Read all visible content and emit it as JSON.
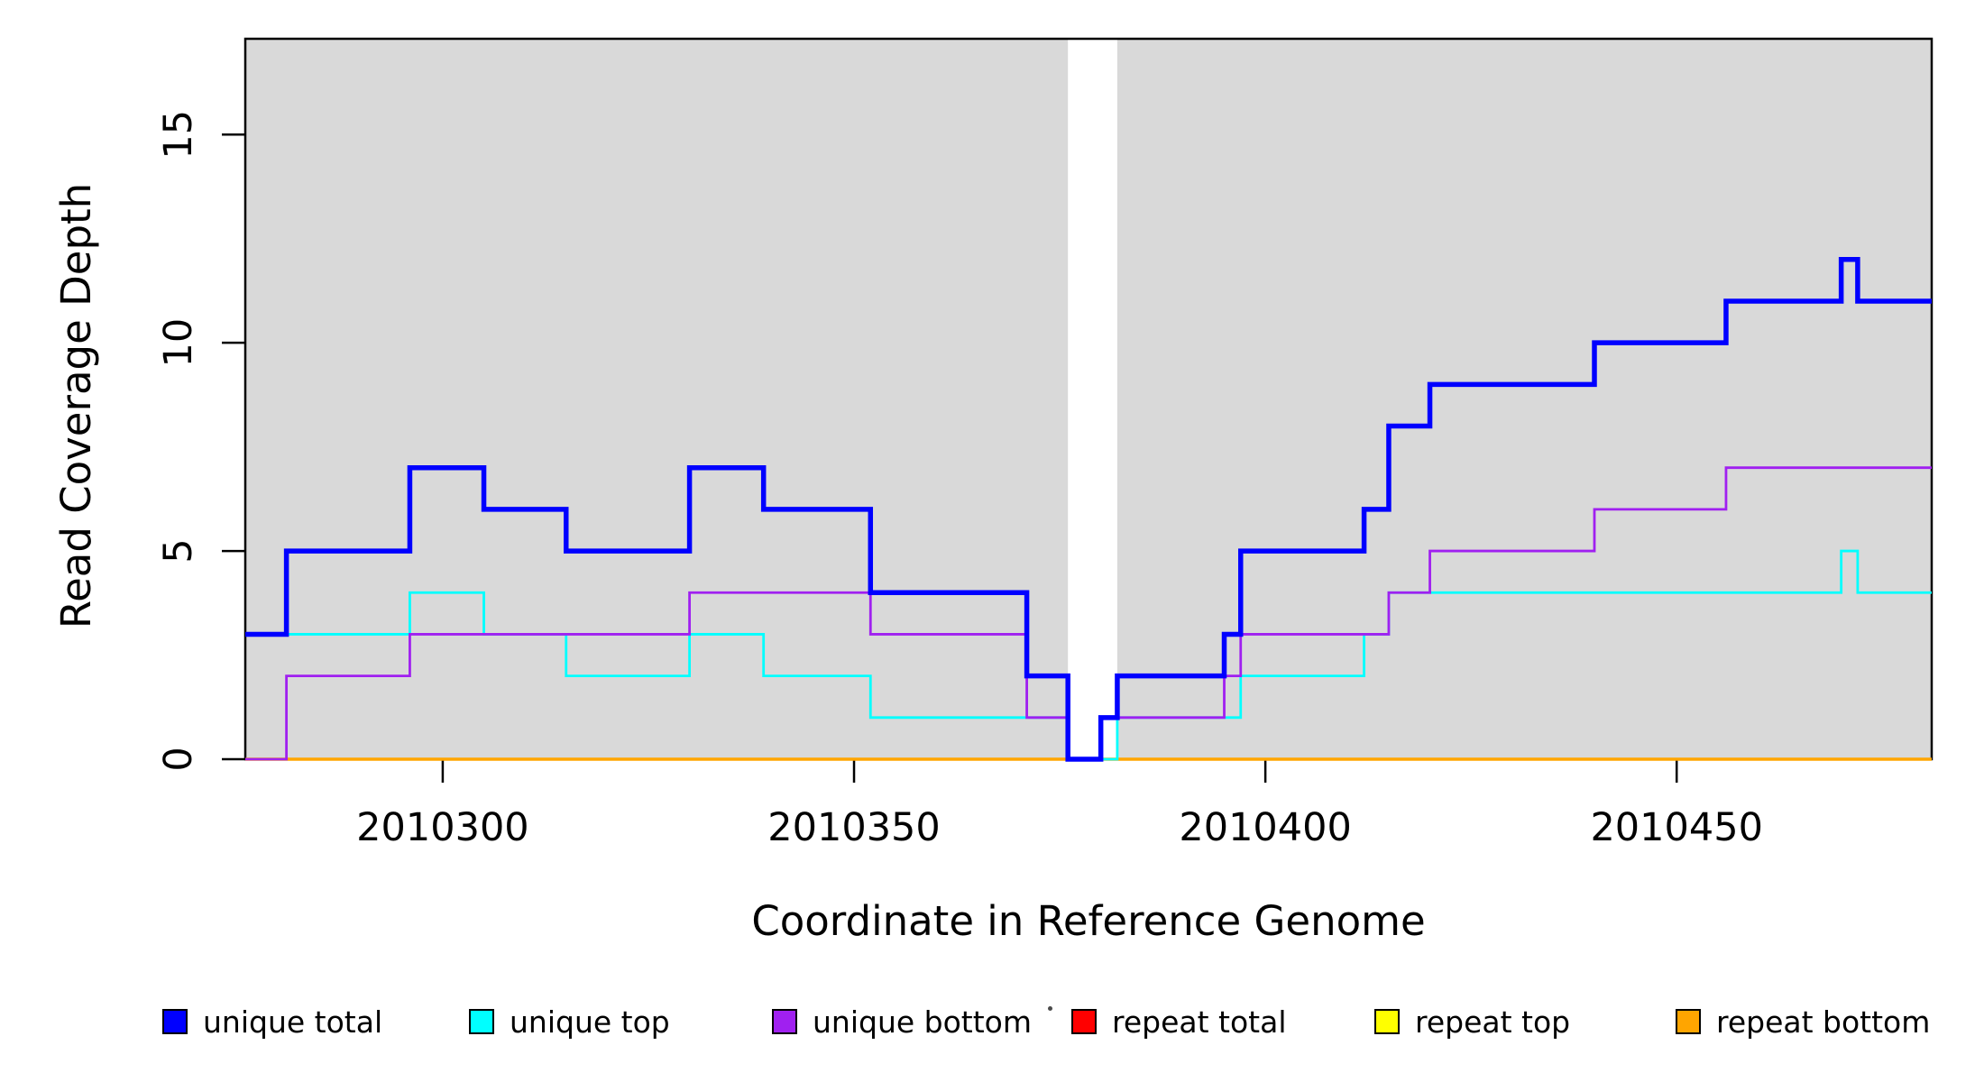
{
  "chart_data": {
    "type": "line",
    "subtype": "step",
    "title": "",
    "xlabel": "Coordinate in Reference Genome",
    "ylabel": "Read Coverage Depth",
    "xlim": [
      2010276,
      2010481
    ],
    "ylim": [
      0,
      17.3
    ],
    "x_end": 2010481,
    "x_ticks": [
      2010300,
      2010350,
      2010400,
      2010450
    ],
    "y_ticks": [
      0,
      5,
      10,
      15
    ],
    "grid": "off",
    "legend_position": "bottom",
    "background": {
      "plot_fill": "#d9d9d9",
      "gap_band": [
        2010376,
        2010382
      ],
      "gap_fill": "#ffffff",
      "border_color": "#000000"
    },
    "series": [
      {
        "name": "repeat total",
        "color": "#ff0000",
        "width": 2.8,
        "points": [
          [
            2010276,
            0
          ]
        ]
      },
      {
        "name": "repeat top",
        "color": "#ffff00",
        "width": 2.8,
        "points": [
          [
            2010276,
            0
          ]
        ]
      },
      {
        "name": "repeat bottom",
        "color": "#ffa500",
        "width": 3.5,
        "points": [
          [
            2010276,
            0
          ]
        ]
      },
      {
        "name": "unique top",
        "color": "#00ffff",
        "width": 2.8,
        "points": [
          [
            2010276,
            3
          ],
          [
            2010296,
            4
          ],
          [
            2010305,
            3
          ],
          [
            2010315,
            2
          ],
          [
            2010330,
            3
          ],
          [
            2010339,
            2
          ],
          [
            2010352,
            1
          ],
          [
            2010376,
            0
          ],
          [
            2010382,
            1
          ],
          [
            2010397,
            2
          ],
          [
            2010412,
            3
          ],
          [
            2010415,
            4
          ],
          [
            2010470,
            5
          ],
          [
            2010472,
            4
          ]
        ]
      },
      {
        "name": "unique bottom",
        "color": "#a020f0",
        "width": 2.8,
        "points": [
          [
            2010276,
            0
          ],
          [
            2010281,
            2
          ],
          [
            2010296,
            3
          ],
          [
            2010330,
            4
          ],
          [
            2010352,
            3
          ],
          [
            2010371,
            1
          ],
          [
            2010376,
            0
          ],
          [
            2010380,
            1
          ],
          [
            2010395,
            2
          ],
          [
            2010397,
            3
          ],
          [
            2010415,
            4
          ],
          [
            2010420,
            5
          ],
          [
            2010440,
            6
          ],
          [
            2010456,
            7
          ]
        ]
      },
      {
        "name": "unique total",
        "color": "#0000ff",
        "width": 5.5,
        "points": [
          [
            2010276,
            3
          ],
          [
            2010281,
            5
          ],
          [
            2010296,
            7
          ],
          [
            2010305,
            6
          ],
          [
            2010315,
            5
          ],
          [
            2010330,
            7
          ],
          [
            2010339,
            6
          ],
          [
            2010352,
            4
          ],
          [
            2010371,
            2
          ],
          [
            2010376,
            0
          ],
          [
            2010380,
            1
          ],
          [
            2010382,
            2
          ],
          [
            2010395,
            3
          ],
          [
            2010397,
            5
          ],
          [
            2010412,
            6
          ],
          [
            2010415,
            8
          ],
          [
            2010420,
            9
          ],
          [
            2010440,
            10
          ],
          [
            2010456,
            11
          ],
          [
            2010470,
            12
          ],
          [
            2010472,
            11
          ]
        ]
      }
    ],
    "legend": [
      {
        "label": "unique total",
        "color": "#0000ff"
      },
      {
        "label": "unique top",
        "color": "#00ffff"
      },
      {
        "label": "unique bottom",
        "color": "#a020f0"
      },
      {
        "label": "repeat total",
        "color": "#ff0000"
      },
      {
        "label": "repeat top",
        "color": "#ffff00"
      },
      {
        "label": "repeat bottom",
        "color": "#ffa500"
      }
    ]
  }
}
